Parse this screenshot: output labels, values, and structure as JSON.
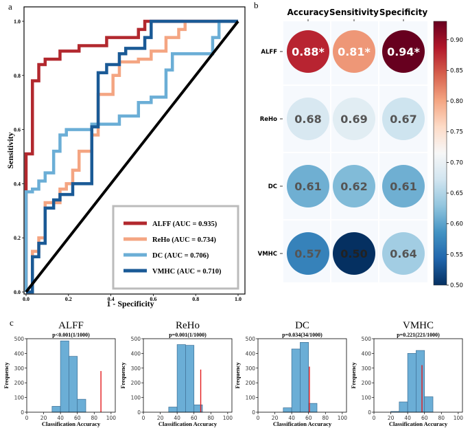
{
  "panel_labels": {
    "a": "a",
    "b": "b",
    "c": "c"
  },
  "chart_data": [
    {
      "id": "roc",
      "type": "line",
      "xlabel": "1 - Specificity",
      "ylabel": "Sensitivity",
      "xlim": [
        0,
        1
      ],
      "ylim": [
        0,
        1
      ],
      "xticks": [
        "0.0",
        "0.2",
        "0.4",
        "0.6",
        "0.8",
        "1.0"
      ],
      "yticks": [
        "0.0",
        "0.2",
        "0.4",
        "0.6",
        "0.8",
        "1.0"
      ],
      "legend_position": "lower-right",
      "series": [
        {
          "name": "ALFF (AUC = 0.935)",
          "color": "#b2282e",
          "x": [
            0,
            0,
            0.03,
            0.03,
            0.06,
            0.06,
            0.09,
            0.09,
            0.16,
            0.16,
            0.25,
            0.25,
            0.38,
            0.38,
            0.53,
            0.53,
            0.56,
            0.56,
            0.72,
            0.72,
            1
          ],
          "y": [
            0,
            0.51,
            0.51,
            0.78,
            0.78,
            0.84,
            0.84,
            0.86,
            0.86,
            0.89,
            0.89,
            0.91,
            0.91,
            0.94,
            0.94,
            0.97,
            0.97,
            1,
            1,
            1,
            1
          ]
        },
        {
          "name": "ReHo (AUC = 0.734)",
          "color": "#f4a582",
          "x": [
            0,
            0.03,
            0.03,
            0.06,
            0.06,
            0.09,
            0.09,
            0.16,
            0.16,
            0.19,
            0.19,
            0.22,
            0.22,
            0.25,
            0.25,
            0.31,
            0.31,
            0.34,
            0.34,
            0.41,
            0.41,
            0.44,
            0.44,
            0.53,
            0.53,
            0.59,
            0.59,
            0.66,
            0.66,
            0.72,
            0.72,
            0.75,
            0.75,
            1
          ],
          "y": [
            0,
            0,
            0.15,
            0.15,
            0.2,
            0.2,
            0.33,
            0.33,
            0.38,
            0.38,
            0.4,
            0.4,
            0.45,
            0.45,
            0.52,
            0.52,
            0.58,
            0.58,
            0.73,
            0.73,
            0.8,
            0.8,
            0.85,
            0.85,
            0.86,
            0.86,
            0.89,
            0.89,
            0.94,
            0.94,
            0.97,
            0.97,
            1,
            1
          ]
        },
        {
          "name": "DC (AUC = 0.706)",
          "color": "#6baed6",
          "x": [
            0,
            0,
            0.03,
            0.03,
            0.06,
            0.06,
            0.09,
            0.09,
            0.13,
            0.13,
            0.16,
            0.16,
            0.19,
            0.19,
            0.31,
            0.31,
            0.38,
            0.38,
            0.44,
            0.44,
            0.53,
            0.53,
            0.59,
            0.59,
            0.66,
            0.66,
            0.69,
            0.69,
            0.88,
            0.88,
            0.91,
            0.91,
            1
          ],
          "y": [
            0,
            0.37,
            0.37,
            0.38,
            0.38,
            0.41,
            0.41,
            0.44,
            0.44,
            0.52,
            0.52,
            0.58,
            0.58,
            0.6,
            0.6,
            0.62,
            0.62,
            0.62,
            0.62,
            0.65,
            0.65,
            0.7,
            0.7,
            0.72,
            0.72,
            0.82,
            0.82,
            0.88,
            0.88,
            0.94,
            0.94,
            1,
            1
          ]
        },
        {
          "name": "VMHC (AUC = 0.710)",
          "color": "#1a5a96",
          "x": [
            0,
            0.03,
            0.03,
            0.06,
            0.06,
            0.09,
            0.09,
            0.13,
            0.13,
            0.16,
            0.16,
            0.22,
            0.22,
            0.31,
            0.31,
            0.34,
            0.34,
            0.38,
            0.38,
            0.44,
            0.44,
            0.47,
            0.47,
            0.56,
            0.56,
            0.59,
            0.59,
            0.78,
            0.78,
            0.91,
            0.91,
            1
          ],
          "y": [
            0,
            0,
            0.13,
            0.13,
            0.18,
            0.18,
            0.31,
            0.31,
            0.34,
            0.34,
            0.36,
            0.36,
            0.4,
            0.4,
            0.61,
            0.61,
            0.81,
            0.81,
            0.84,
            0.84,
            0.88,
            0.88,
            0.9,
            0.9,
            0.94,
            0.94,
            1,
            1,
            1,
            1,
            1,
            1
          ]
        }
      ],
      "diagonal": {
        "x": [
          0,
          1
        ],
        "y": [
          0,
          1
        ],
        "color": "#000000"
      }
    },
    {
      "id": "accuracy_bubbles",
      "type": "heatmap",
      "columns": [
        "Accuracy",
        "Sensitivity",
        "Specificity"
      ],
      "rows": [
        "ALFF",
        "ReHo",
        "DC",
        "VMHC"
      ],
      "values": [
        [
          0.88,
          0.81,
          0.94
        ],
        [
          0.68,
          0.69,
          0.67
        ],
        [
          0.61,
          0.62,
          0.61
        ],
        [
          0.57,
          0.5,
          0.64
        ]
      ],
      "labels": [
        [
          "0.88*",
          "0.81*",
          "0.94*"
        ],
        [
          "0.68",
          "0.69",
          "0.67"
        ],
        [
          "0.61",
          "0.62",
          "0.61"
        ],
        [
          "0.57",
          "0.50",
          "0.64"
        ]
      ],
      "colorbar": {
        "range": [
          0.5,
          0.93
        ],
        "ticks": [
          "0.50",
          "0.55",
          "0.60",
          "0.65",
          "0.70",
          "0.75",
          "0.80",
          "0.85",
          "0.90"
        ],
        "stops": [
          "#053061",
          "#2166ac",
          "#4393c3",
          "#92c5de",
          "#d1e5f0",
          "#f7f7f7",
          "#fddbc7",
          "#f4a582",
          "#d6604d",
          "#b2182b",
          "#67001f"
        ]
      }
    },
    {
      "id": "perm_alff",
      "type": "bar",
      "title": "ALFF",
      "subtitle": "p<0.001(1/1000)",
      "xlabel": "Classification Accuracy",
      "ylabel": "Frequency",
      "xlim": [
        0,
        105
      ],
      "ylim": [
        0,
        500
      ],
      "xticks": [
        "0",
        "20",
        "40",
        "60",
        "80",
        "100"
      ],
      "yticks": [
        "0",
        "100",
        "200",
        "300",
        "400",
        "500"
      ],
      "bins": [
        [
          30,
          40,
          40
        ],
        [
          40,
          50,
          485
        ],
        [
          50,
          60,
          380
        ],
        [
          60,
          70,
          88
        ]
      ],
      "marker": {
        "value": 88,
        "height": 280,
        "color": "#e31a1c"
      },
      "bar_color": "#6baed6"
    },
    {
      "id": "perm_reho",
      "type": "bar",
      "title": "ReHo",
      "subtitle": "p=0.001(1/1000)",
      "xlabel": "Classification Accuracy",
      "ylabel": "Frequency",
      "xlim": [
        0,
        105
      ],
      "ylim": [
        0,
        500
      ],
      "xticks": [
        "0",
        "20",
        "40",
        "60",
        "80",
        "100"
      ],
      "yticks": [
        "0",
        "100",
        "200",
        "300",
        "400",
        "500"
      ],
      "bins": [
        [
          30,
          40,
          35
        ],
        [
          40,
          50,
          460
        ],
        [
          50,
          60,
          455
        ],
        [
          60,
          70,
          50
        ]
      ],
      "marker": {
        "value": 68,
        "height": 290,
        "color": "#e31a1c"
      },
      "bar_color": "#6baed6"
    },
    {
      "id": "perm_dc",
      "type": "bar",
      "title": "DC",
      "subtitle": "p=0.034(34/1000)",
      "xlabel": "Classification Accuracy",
      "ylabel": "Frequency",
      "xlim": [
        0,
        105
      ],
      "ylim": [
        0,
        500
      ],
      "xticks": [
        "0",
        "20",
        "40",
        "60",
        "80",
        "100"
      ],
      "yticks": [
        "0",
        "100",
        "200",
        "300",
        "400",
        "500"
      ],
      "bins": [
        [
          30,
          40,
          30
        ],
        [
          40,
          50,
          430
        ],
        [
          50,
          60,
          475
        ],
        [
          60,
          70,
          60
        ]
      ],
      "marker": {
        "value": 61,
        "height": 310,
        "color": "#e31a1c"
      },
      "bar_color": "#6baed6"
    },
    {
      "id": "perm_vmhc",
      "type": "bar",
      "title": "VMHC",
      "subtitle": "p=0.221(221/1000)",
      "xlabel": "Classification Accuracy",
      "ylabel": "Frequency",
      "xlim": [
        0,
        105
      ],
      "ylim": [
        0,
        500
      ],
      "xticks": [
        "0",
        "20",
        "40",
        "60",
        "80",
        "100"
      ],
      "yticks": [
        "0",
        "100",
        "200",
        "300",
        "400",
        "500"
      ],
      "bins": [
        [
          20,
          30,
          5
        ],
        [
          30,
          40,
          70
        ],
        [
          40,
          50,
          400
        ],
        [
          50,
          60,
          420
        ],
        [
          60,
          70,
          105
        ]
      ],
      "marker": {
        "value": 57,
        "height": 320,
        "color": "#e31a1c"
      },
      "bar_color": "#6baed6"
    }
  ]
}
